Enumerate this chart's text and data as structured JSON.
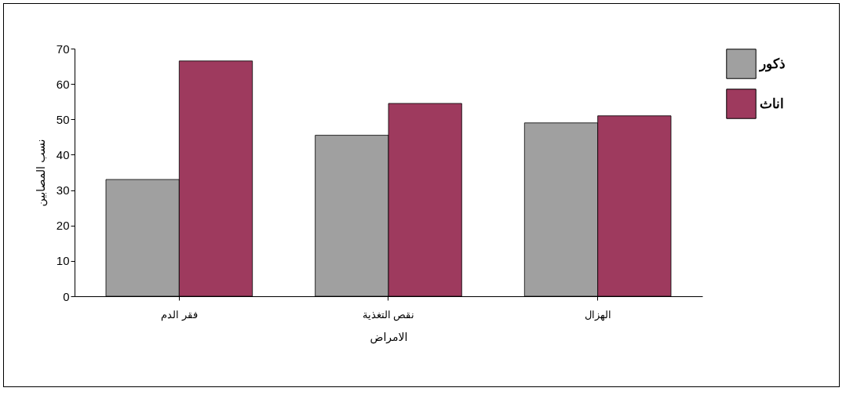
{
  "chart_data": {
    "type": "bar",
    "xlabel": "الامراض",
    "ylabel": "نسب المصابين",
    "categories": [
      "فقر الدم",
      "نقص التغذية",
      "الهزال"
    ],
    "series": [
      {
        "name": "ذكور",
        "color": "#a0a0a0",
        "values": [
          33,
          45.5,
          49
        ]
      },
      {
        "name": "اناث",
        "color": "#9e3a5e",
        "values": [
          66.5,
          54.5,
          51
        ]
      }
    ],
    "ylim": [
      0,
      70
    ],
    "yticks": [
      0,
      10,
      20,
      30,
      40,
      50,
      60,
      70
    ],
    "grid": false,
    "legend": "top right"
  }
}
